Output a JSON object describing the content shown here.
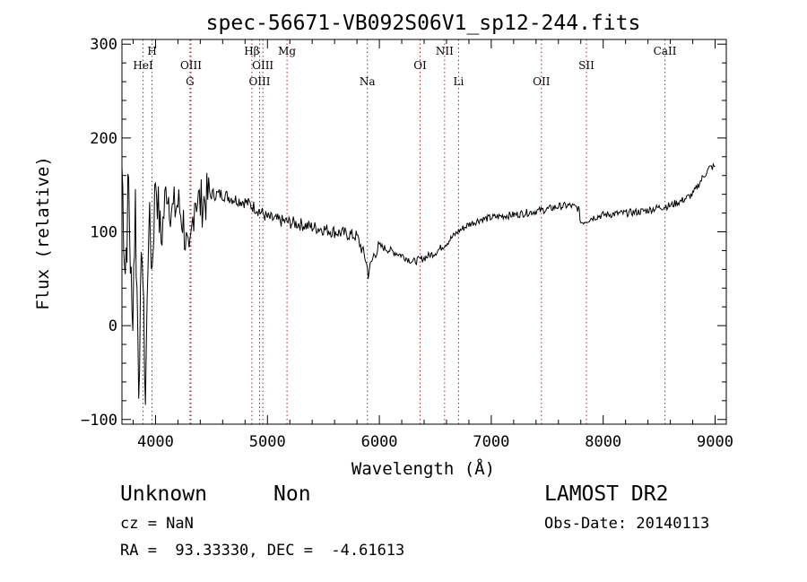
{
  "chart_data": {
    "type": "line",
    "title": "spec-56671-VB092S06V1_sp12-244.fits",
    "xlabel": "Wavelength (Å)",
    "ylabel": "Flux (relative)",
    "xlim": [
      3700,
      9100
    ],
    "ylim": [
      -105,
      305
    ],
    "xticks": [
      4000,
      5000,
      6000,
      7000,
      8000,
      9000
    ],
    "yticks": [
      -100,
      0,
      100,
      200,
      300
    ],
    "grid": false,
    "line_color": "#000000",
    "marker_line_color": "#b22222",
    "series": [
      {
        "x": [
          3700,
          3730,
          3760,
          3790,
          3820,
          3850,
          3880,
          3910,
          3940,
          3970,
          4000,
          4050,
          4100,
          4150,
          4200,
          4250,
          4300,
          4350,
          4400,
          4450,
          4500,
          4600,
          4700,
          4800,
          4900,
          5000,
          5100,
          5200,
          5300,
          5400,
          5500,
          5600,
          5700,
          5800,
          5880,
          5900,
          5950,
          6000,
          6100,
          6200,
          6300,
          6400,
          6500,
          6600,
          6700,
          6800,
          6900,
          7000,
          7100,
          7200,
          7300,
          7400,
          7500,
          7600,
          7700,
          7780,
          7800,
          7850,
          7900,
          8000,
          8100,
          8200,
          8300,
          8400,
          8500,
          8600,
          8700,
          8800,
          8900,
          8950,
          9000
        ],
        "y": [
          170,
          60,
          150,
          0,
          130,
          -60,
          90,
          -80,
          120,
          60,
          160,
          90,
          150,
          120,
          130,
          110,
          60,
          140,
          130,
          135,
          140,
          140,
          135,
          132,
          125,
          115,
          112,
          110,
          108,
          105,
          103,
          100,
          98,
          95,
          70,
          55,
          75,
          85,
          80,
          75,
          68,
          72,
          78,
          88,
          100,
          108,
          113,
          115,
          117,
          118,
          120,
          122,
          124,
          127,
          128,
          125,
          110,
          112,
          115,
          118,
          119,
          120,
          121,
          123,
          126,
          128,
          133,
          140,
          160,
          168,
          170
        ]
      }
    ],
    "spectral_lines": [
      {
        "label": "HeI",
        "x": 3889,
        "row": 2
      },
      {
        "label": "H",
        "x": 3969,
        "row": 1
      },
      {
        "label": "OIII",
        "x": 4317,
        "row": 2
      },
      {
        "label": "G",
        "x": 4308,
        "row": 3
      },
      {
        "label": "Hβ",
        "x": 4861,
        "row": 1
      },
      {
        "label": "OIII",
        "x": 4959,
        "row": 2
      },
      {
        "label": "OIII",
        "x": 4930,
        "row": 3
      },
      {
        "label": "Mg",
        "x": 5175,
        "row": 1
      },
      {
        "label": "Na",
        "x": 5893,
        "row": 3
      },
      {
        "label": "OI",
        "x": 6364,
        "row": 2
      },
      {
        "label": "NII",
        "x": 6583,
        "row": 1
      },
      {
        "label": "Li",
        "x": 6708,
        "row": 3
      },
      {
        "label": "OII",
        "x": 7448,
        "row": 3
      },
      {
        "label": "SII",
        "x": 7850,
        "row": 2
      },
      {
        "label": "CaII",
        "x": 8552,
        "row": 1
      }
    ]
  },
  "info": {
    "object_class": "Unknown",
    "object_subclass": "Non",
    "survey": "LAMOST DR2",
    "cz": "cz = NaN",
    "obs_date": "Obs-Date: 20140113",
    "coords": "RA =  93.33330, DEC =  -4.61613"
  }
}
